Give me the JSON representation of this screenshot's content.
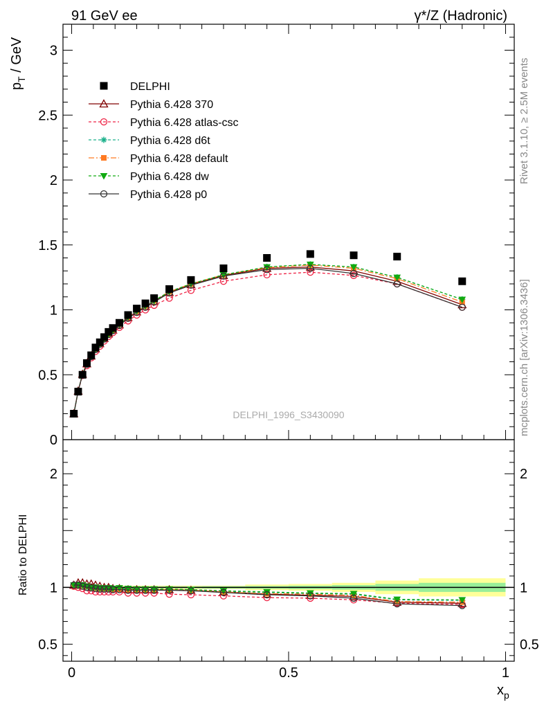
{
  "header": {
    "left": "91 GeV ee",
    "right": "γ*/Z (Hadronic)"
  },
  "side": {
    "rivet": "Rivet 3.1.10, ≥ 2.5M events",
    "mcplots": "mcplots.cern.ch [arXiv:1306.3436]"
  },
  "watermark": "DELPHI_1996_S3430090",
  "chart_data": [
    {
      "type": "scatter",
      "panel": "main",
      "ylabel_main": "p",
      "ylabel_sub": "T",
      "ylabel_unit": " / GeV",
      "xlim": [
        -0.02,
        1.02
      ],
      "ylim": [
        0,
        3.2
      ],
      "yticks": [
        0,
        0.5,
        1,
        1.5,
        2,
        2.5,
        3
      ],
      "ytick_labels": [
        "0",
        "0.5",
        "1",
        "1.5",
        "2",
        "2.5",
        "3"
      ],
      "x": [
        0.005,
        0.015,
        0.025,
        0.035,
        0.045,
        0.055,
        0.065,
        0.075,
        0.085,
        0.095,
        0.11,
        0.13,
        0.15,
        0.17,
        0.19,
        0.225,
        0.275,
        0.35,
        0.45,
        0.55,
        0.65,
        0.75,
        0.9
      ],
      "data": {
        "name": "DELPHI",
        "values": [
          0.2,
          0.37,
          0.5,
          0.59,
          0.65,
          0.71,
          0.75,
          0.79,
          0.83,
          0.86,
          0.9,
          0.96,
          1.01,
          1.05,
          1.09,
          1.16,
          1.23,
          1.32,
          1.4,
          1.43,
          1.42,
          1.41,
          1.22
        ]
      },
      "series": [
        {
          "name": "Pythia 6.428 370",
          "color": "#800000",
          "marker": "triangle",
          "dash": "",
          "values": [
            0.2,
            0.375,
            0.505,
            0.585,
            0.645,
            0.7,
            0.74,
            0.78,
            0.815,
            0.845,
            0.885,
            0.94,
            0.985,
            1.025,
            1.065,
            1.135,
            1.195,
            1.265,
            1.32,
            1.33,
            1.3,
            1.22,
            1.04
          ]
        },
        {
          "name": "Pythia 6.428 atlas-csc",
          "color": "#ee2244",
          "marker": "circle-open",
          "dash": "4,3",
          "values": [
            0.2,
            0.37,
            0.495,
            0.57,
            0.63,
            0.68,
            0.72,
            0.76,
            0.795,
            0.825,
            0.865,
            0.915,
            0.96,
            1.0,
            1.035,
            1.09,
            1.15,
            1.22,
            1.27,
            1.29,
            1.265,
            1.2,
            1.02
          ]
        },
        {
          "name": "Pythia 6.428 d6t",
          "color": "#1ab08a",
          "marker": "star",
          "dash": "4,3",
          "values": [
            0.2,
            0.375,
            0.505,
            0.585,
            0.645,
            0.7,
            0.74,
            0.78,
            0.815,
            0.845,
            0.89,
            0.945,
            0.99,
            1.03,
            1.07,
            1.14,
            1.2,
            1.27,
            1.33,
            1.35,
            1.33,
            1.25,
            1.08
          ]
        },
        {
          "name": "Pythia 6.428 default",
          "color": "#ff7a22",
          "marker": "square",
          "dash": "8,3,2,3",
          "values": [
            0.2,
            0.375,
            0.505,
            0.585,
            0.645,
            0.7,
            0.74,
            0.78,
            0.815,
            0.845,
            0.89,
            0.945,
            0.99,
            1.03,
            1.07,
            1.14,
            1.2,
            1.27,
            1.325,
            1.345,
            1.32,
            1.24,
            1.06
          ]
        },
        {
          "name": "Pythia 6.428 dw",
          "color": "#11aa11",
          "marker": "triangle-down",
          "dash": "4,3",
          "values": [
            0.2,
            0.375,
            0.505,
            0.585,
            0.645,
            0.7,
            0.74,
            0.78,
            0.815,
            0.845,
            0.89,
            0.945,
            0.99,
            1.03,
            1.07,
            1.14,
            1.2,
            1.27,
            1.33,
            1.35,
            1.33,
            1.25,
            1.08
          ]
        },
        {
          "name": "Pythia 6.428 p0",
          "color": "#333333",
          "marker": "circle-open",
          "dash": "",
          "values": [
            0.2,
            0.375,
            0.5,
            0.58,
            0.64,
            0.695,
            0.735,
            0.775,
            0.81,
            0.84,
            0.88,
            0.935,
            0.98,
            1.02,
            1.06,
            1.13,
            1.19,
            1.26,
            1.31,
            1.32,
            1.28,
            1.2,
            1.02
          ]
        }
      ],
      "legend_position": "top-left"
    },
    {
      "type": "scatter",
      "panel": "ratio",
      "ylabel": "Ratio to DELPHI",
      "xlabel_main": "x",
      "xlabel_sub": "p",
      "xlim": [
        -0.02,
        1.02
      ],
      "ylim": [
        0.35,
        2.3
      ],
      "yticks": [
        0.5,
        1,
        2
      ],
      "ytick_labels": [
        "0.5",
        "1",
        "2"
      ],
      "xticks": [
        0,
        0.5,
        1
      ],
      "xtick_labels": [
        "0",
        "0.5",
        "1"
      ],
      "band_edges": [
        0,
        0.01,
        0.02,
        0.03,
        0.04,
        0.05,
        0.06,
        0.07,
        0.08,
        0.09,
        0.1,
        0.12,
        0.14,
        0.16,
        0.18,
        0.2,
        0.25,
        0.3,
        0.4,
        0.5,
        0.6,
        0.7,
        0.8,
        1.0
      ],
      "band_outer": [
        0.02,
        0.015,
        0.015,
        0.015,
        0.015,
        0.015,
        0.015,
        0.015,
        0.015,
        0.015,
        0.015,
        0.015,
        0.015,
        0.015,
        0.015,
        0.015,
        0.015,
        0.015,
        0.025,
        0.03,
        0.04,
        0.06,
        0.08
      ],
      "band_inner": [
        0.01,
        0.008,
        0.008,
        0.008,
        0.008,
        0.008,
        0.008,
        0.008,
        0.008,
        0.008,
        0.008,
        0.008,
        0.008,
        0.008,
        0.008,
        0.008,
        0.008,
        0.01,
        0.012,
        0.015,
        0.02,
        0.03,
        0.04
      ],
      "x": [
        0.005,
        0.015,
        0.025,
        0.035,
        0.045,
        0.055,
        0.065,
        0.075,
        0.085,
        0.095,
        0.11,
        0.13,
        0.15,
        0.17,
        0.19,
        0.225,
        0.275,
        0.35,
        0.45,
        0.55,
        0.65,
        0.75,
        0.9
      ],
      "series": [
        {
          "name": "Pythia 6.428 370",
          "values": [
            1.02,
            1.04,
            1.04,
            1.03,
            1.03,
            1.02,
            1.01,
            1.0,
            1.0,
            0.99,
            0.99,
            0.98,
            0.98,
            0.98,
            0.98,
            0.98,
            0.975,
            0.96,
            0.94,
            0.93,
            0.92,
            0.87,
            0.86
          ]
        },
        {
          "name": "Pythia 6.428 atlas-csc",
          "values": [
            1.01,
            1.0,
            0.99,
            0.97,
            0.97,
            0.96,
            0.96,
            0.96,
            0.96,
            0.96,
            0.96,
            0.95,
            0.95,
            0.95,
            0.95,
            0.94,
            0.935,
            0.925,
            0.91,
            0.905,
            0.89,
            0.86,
            0.85
          ]
        },
        {
          "name": "Pythia 6.428 d6t",
          "values": [
            1.02,
            1.02,
            1.02,
            1.01,
            1.0,
            1.0,
            0.99,
            0.99,
            0.99,
            0.99,
            0.99,
            0.985,
            0.98,
            0.98,
            0.985,
            0.98,
            0.975,
            0.965,
            0.955,
            0.945,
            0.94,
            0.89,
            0.885
          ]
        },
        {
          "name": "Pythia 6.428 default",
          "values": [
            1.02,
            1.02,
            1.02,
            1.01,
            1.0,
            0.995,
            0.99,
            0.99,
            0.99,
            0.985,
            0.985,
            0.98,
            0.98,
            0.98,
            0.98,
            0.98,
            0.975,
            0.96,
            0.945,
            0.94,
            0.93,
            0.875,
            0.87
          ]
        },
        {
          "name": "Pythia 6.428 dw",
          "values": [
            1.02,
            1.02,
            1.02,
            1.01,
            1.0,
            1.0,
            0.995,
            0.995,
            0.995,
            0.99,
            0.995,
            0.99,
            0.985,
            0.985,
            0.985,
            0.985,
            0.98,
            0.97,
            0.96,
            0.95,
            0.945,
            0.895,
            0.89
          ]
        },
        {
          "name": "Pythia 6.428 p0",
          "values": [
            1.02,
            1.02,
            1.01,
            1.0,
            0.995,
            0.99,
            0.985,
            0.985,
            0.985,
            0.98,
            0.98,
            0.975,
            0.975,
            0.975,
            0.975,
            0.975,
            0.97,
            0.955,
            0.935,
            0.925,
            0.905,
            0.855,
            0.84
          ]
        }
      ]
    }
  ]
}
